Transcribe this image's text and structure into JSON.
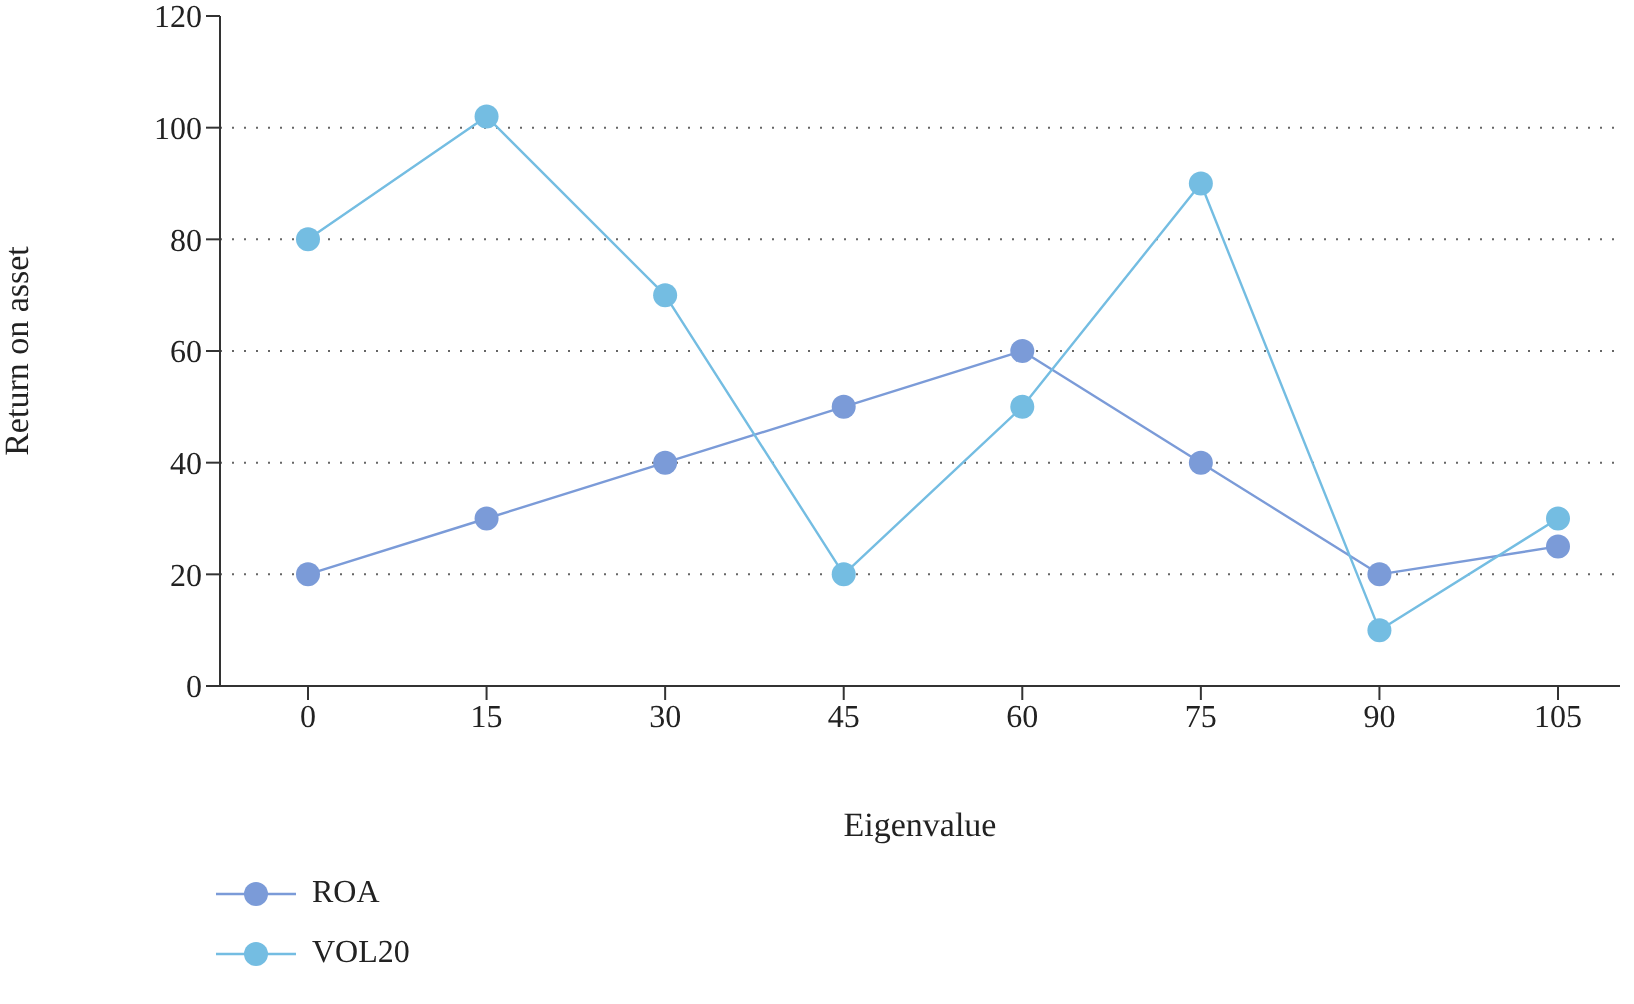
{
  "chart_data": {
    "type": "line",
    "xlabel": "Eigenvalue",
    "ylabel": "Return on asset",
    "categories": [
      "0",
      "15",
      "30",
      "45",
      "60",
      "75",
      "90",
      "105"
    ],
    "series": [
      {
        "name": "ROA",
        "color": "#7b9bd8",
        "values": [
          20,
          30,
          40,
          50,
          60,
          40,
          20,
          25
        ]
      },
      {
        "name": "VOL20",
        "color": "#74bde2",
        "values": [
          80,
          102,
          70,
          20,
          50,
          90,
          10,
          30
        ]
      }
    ],
    "ylim": [
      0,
      120
    ],
    "yticks": [
      0,
      20,
      40,
      60,
      80,
      100,
      120
    ],
    "grid": "y",
    "legend": "bottom left",
    "marker": "circle",
    "line_style": "solid"
  }
}
